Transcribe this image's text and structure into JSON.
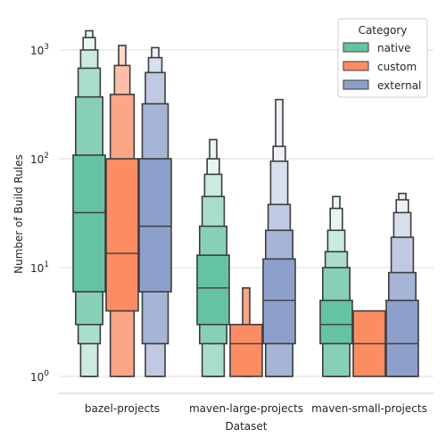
{
  "chart_data": {
    "type": "boxen",
    "xlabel": "Dataset",
    "ylabel": "Number of Build Rules",
    "y_scale": "log",
    "ylim": [
      0.85,
      2000
    ],
    "y_ticks": [
      {
        "value": 1,
        "base": "10",
        "exp": "0"
      },
      {
        "value": 10,
        "base": "10",
        "exp": "1"
      },
      {
        "value": 100,
        "base": "10",
        "exp": "2"
      },
      {
        "value": 1000,
        "base": "10",
        "exp": "3"
      }
    ],
    "grid": "horizontal",
    "categories": [
      "bazel-projects",
      "maven-large-projects",
      "maven-small-projects"
    ],
    "legend": {
      "title": "Category",
      "placement": "top-right"
    },
    "series": [
      {
        "name": "native",
        "color": "#66c2a5",
        "boxes": [
          {
            "median": 32,
            "levels": [
              [
                6,
                108
              ],
              [
                3,
                370
              ],
              [
                2,
                680
              ],
              [
                1,
                1000
              ],
              [
                1,
                1300
              ],
              [
                1,
                1500
              ]
            ]
          },
          {
            "median": 6.5,
            "levels": [
              [
                3,
                13
              ],
              [
                2,
                24
              ],
              [
                1,
                45
              ],
              [
                1,
                72
              ],
              [
                1,
                100
              ],
              [
                1,
                150
              ]
            ]
          },
          {
            "median": 3,
            "levels": [
              [
                2,
                5
              ],
              [
                1,
                10
              ],
              [
                1,
                14
              ],
              [
                1,
                22
              ],
              [
                1,
                35
              ],
              [
                1,
                45
              ]
            ]
          }
        ]
      },
      {
        "name": "custom",
        "color": "#fc8d62",
        "boxes": [
          {
            "median": 13.5,
            "levels": [
              [
                4,
                100
              ],
              [
                1,
                390
              ],
              [
                1,
                720
              ],
              [
                1,
                1100
              ]
            ]
          },
          {
            "median": 2,
            "levels": [
              [
                1,
                3
              ],
              [
                1,
                6.5
              ]
            ]
          },
          {
            "median": 2,
            "levels": [
              [
                1,
                4
              ]
            ]
          }
        ]
      },
      {
        "name": "external",
        "color": "#8da0cb",
        "boxes": [
          {
            "median": 24,
            "levels": [
              [
                6,
                100
              ],
              [
                2,
                320
              ],
              [
                1,
                620
              ],
              [
                1,
                850
              ],
              [
                1,
                1050
              ]
            ]
          },
          {
            "median": 5,
            "levels": [
              [
                2,
                12
              ],
              [
                1,
                22
              ],
              [
                1,
                38
              ],
              [
                1,
                95
              ],
              [
                1,
                130
              ],
              [
                1,
                350
              ]
            ]
          },
          {
            "median": 2,
            "levels": [
              [
                1,
                5
              ],
              [
                1,
                9
              ],
              [
                1,
                19
              ],
              [
                1,
                32
              ],
              [
                1,
                42
              ],
              [
                1,
                48
              ]
            ]
          }
        ]
      }
    ]
  }
}
